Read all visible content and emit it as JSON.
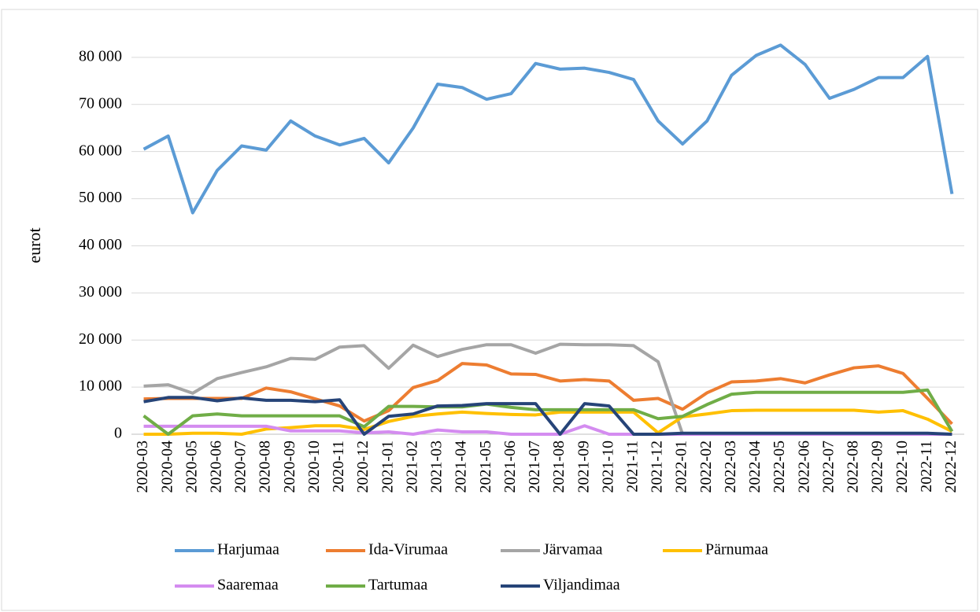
{
  "chart_data": {
    "type": "line",
    "y_label": "eurot",
    "categories": [
      "2020-03",
      "2020-04",
      "2020-05",
      "2020-06",
      "2020-07",
      "2020-08",
      "2020-09",
      "2020-10",
      "2020-11",
      "2020-12",
      "2021-01",
      "2021-02",
      "2021-03",
      "2021-04",
      "2021-05",
      "2021-06",
      "2021-07",
      "2021-08",
      "2021-09",
      "2021-10",
      "2021-11",
      "2021-12",
      "2022-01",
      "2022-02",
      "2022-03",
      "2022-04",
      "2022-05",
      "2022-06",
      "2022-07",
      "2022-08",
      "2022-09",
      "2022-10",
      "2022-11",
      "2022-12"
    ],
    "ylim": [
      0,
      88000
    ],
    "yticks": [
      0,
      {
        "value": 10000,
        "label": "10 000"
      },
      {
        "value": 20000,
        "label": "20 000"
      },
      {
        "value": 30000,
        "label": "30 000"
      },
      {
        "value": 40000,
        "label": "40 000"
      },
      {
        "value": 50000,
        "label": "50 000"
      },
      {
        "value": 60000,
        "label": "60 000"
      },
      {
        "value": 70000,
        "label": "70 000"
      },
      {
        "value": 80000,
        "label": "80 000"
      }
    ],
    "grid": true,
    "legend": "bottom",
    "series": [
      {
        "name": "Harjumaa",
        "color": "#5b9bd5",
        "values": [
          60500,
          63300,
          47000,
          56000,
          61200,
          60300,
          66500,
          63300,
          61400,
          62800,
          57600,
          65000,
          74300,
          73600,
          71100,
          72300,
          78700,
          77500,
          77700,
          76800,
          75300,
          66500,
          61600,
          66500,
          76200,
          80400,
          82600,
          78500,
          71300,
          73200,
          75700,
          75700,
          80200,
          51000
        ]
      },
      {
        "name": "Ida-Virumaa",
        "color": "#ed7d31",
        "values": [
          7500,
          7600,
          7600,
          7600,
          7600,
          9800,
          9000,
          7500,
          6000,
          2800,
          5000,
          9900,
          11400,
          15000,
          14700,
          12800,
          12700,
          11300,
          11600,
          11300,
          7200,
          7600,
          5300,
          8800,
          11100,
          11300,
          11800,
          10900,
          12600,
          14100,
          14500,
          12900,
          7600,
          2200
        ]
      },
      {
        "name": "Järvamaa",
        "color": "#a5a5a5",
        "values": [
          10200,
          10500,
          8700,
          11800,
          13100,
          14300,
          16100,
          15900,
          18500,
          18800,
          14000,
          18900,
          16500,
          18000,
          19000,
          19000,
          17200,
          19100,
          19000,
          19000,
          18800,
          15400,
          0,
          0,
          0,
          0,
          0,
          0,
          0,
          0,
          0,
          0,
          0,
          0
        ]
      },
      {
        "name": "Pärnumaa",
        "color": "#ffc000",
        "values": [
          0,
          0,
          200,
          200,
          0,
          1100,
          1400,
          1800,
          1800,
          1000,
          2700,
          3800,
          4300,
          4700,
          4400,
          4200,
          4100,
          4700,
          4700,
          4700,
          4700,
          300,
          3700,
          4300,
          5000,
          5100,
          5100,
          5100,
          5100,
          5100,
          4700,
          5000,
          3200,
          600
        ]
      },
      {
        "name": "Saaremaa",
        "color": "#d48cf0",
        "values": [
          1700,
          1700,
          1700,
          1700,
          1700,
          1700,
          700,
          700,
          700,
          300,
          500,
          0,
          900,
          500,
          500,
          0,
          0,
          0,
          1800,
          0,
          0,
          0,
          0,
          0,
          0,
          0,
          0,
          0,
          0,
          0,
          0,
          0,
          0,
          0
        ]
      },
      {
        "name": "Tartumaa",
        "color": "#70ad47",
        "values": [
          3900,
          0,
          3900,
          4300,
          3900,
          3900,
          3900,
          3900,
          3900,
          1600,
          5900,
          5900,
          5800,
          5800,
          6400,
          5700,
          5200,
          5200,
          5200,
          5200,
          5200,
          3300,
          3800,
          6300,
          8500,
          8900,
          8900,
          8900,
          8900,
          8900,
          8900,
          8900,
          9400,
          600
        ]
      },
      {
        "name": "Viljandimaa",
        "color": "#264478",
        "values": [
          6900,
          7800,
          7800,
          7100,
          7700,
          7200,
          7200,
          6900,
          7300,
          0,
          3800,
          4300,
          6000,
          6100,
          6500,
          6500,
          6500,
          0,
          6500,
          6000,
          0,
          0,
          200,
          200,
          200,
          200,
          200,
          200,
          200,
          200,
          200,
          200,
          200,
          0
        ]
      }
    ]
  }
}
